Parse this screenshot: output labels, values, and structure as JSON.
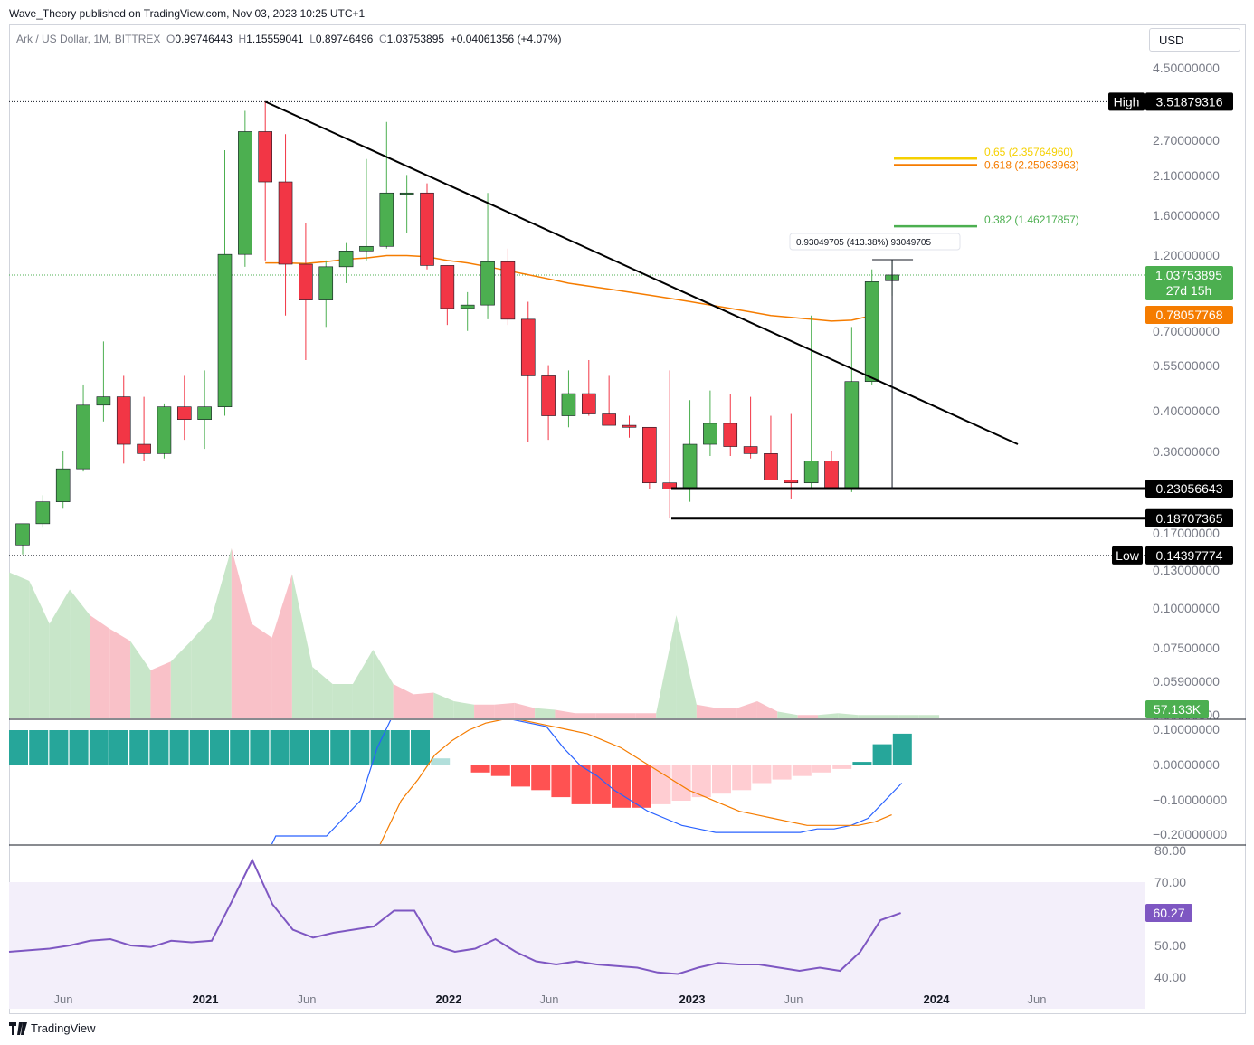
{
  "publisher_line": "Wave_Theory published on TradingView.com, Nov 03, 2023 10:25 UTC+1",
  "legend": {
    "symbol": "Ark / US Dollar, 1M, BITTREX",
    "o_label": "O",
    "o": "0.99746443",
    "h_label": "H",
    "h": "1.15559041",
    "l_label": "L",
    "l": "0.89746496",
    "c_label": "C",
    "c": "1.03753895",
    "change": "+0.04061356 (+4.07%)"
  },
  "currency_button": "USD",
  "footer_brand": "TradingView",
  "colors": {
    "up": "#4caf50",
    "down": "#f23645",
    "ema": "#f57c00",
    "trendline": "#000000",
    "fib_0382": "#4caf50",
    "fib_0618": "#f57c00",
    "fib_065": "#f5d000",
    "macd_line": "#2962ff",
    "signal_line": "#f57c00",
    "hist_up_strong": "#26a69a",
    "hist_up_weak": "#b2dfdb",
    "hist_down_strong": "#ff5252",
    "hist_down_weak": "#ffcdd2",
    "rsi_line": "#7e57c2",
    "rsi_band": "#f3effa"
  },
  "chart_data": {
    "type": "candlestick",
    "scale": "log",
    "price_axis_ticks": [
      "4.50000000",
      "2.70000000",
      "2.10000000",
      "1.60000000",
      "1.20000000",
      "0.70000000",
      "0.55000000",
      "0.40000000",
      "0.30000000",
      "0.17000000",
      "0.13000000",
      "0.10000000",
      "0.07500000",
      "0.05900000",
      "0.00000000"
    ],
    "x_axis_ticks": [
      "Jun",
      "2021",
      "Jun",
      "2022",
      "Jun",
      "2023",
      "Jun",
      "2024",
      "Jun"
    ],
    "price_labels": {
      "high_label": "High",
      "high_value": "3.51879316",
      "last_price": "1.03753895",
      "countdown": "27d 15h",
      "ema_value": "0.78057768",
      "support_1": "0.23056643",
      "support_2": "0.18707365",
      "low_label": "Low",
      "low_value": "0.14397774",
      "volume_value": "57.133K"
    },
    "fib_labels": {
      "f065": "0.65 (2.35764960)",
      "f0618": "0.618 (2.25063963)",
      "f0382": "0.382 (1.46217857)"
    },
    "measure_label": "0.93049705 (413.38%) 93049705",
    "candles": [
      {
        "o": 0.155,
        "h": 0.17,
        "l": 0.145,
        "c": 0.18
      },
      {
        "o": 0.18,
        "h": 0.22,
        "l": 0.175,
        "c": 0.21
      },
      {
        "o": 0.21,
        "h": 0.3,
        "l": 0.2,
        "c": 0.265
      },
      {
        "o": 0.265,
        "h": 0.48,
        "l": 0.26,
        "c": 0.415
      },
      {
        "o": 0.415,
        "h": 0.65,
        "l": 0.37,
        "c": 0.44
      },
      {
        "o": 0.44,
        "h": 0.51,
        "l": 0.275,
        "c": 0.315
      },
      {
        "o": 0.315,
        "h": 0.44,
        "l": 0.28,
        "c": 0.295
      },
      {
        "o": 0.295,
        "h": 0.42,
        "l": 0.285,
        "c": 0.41
      },
      {
        "o": 0.41,
        "h": 0.51,
        "l": 0.325,
        "c": 0.375
      },
      {
        "o": 0.375,
        "h": 0.53,
        "l": 0.305,
        "c": 0.41
      },
      {
        "o": 0.41,
        "h": 2.5,
        "l": 0.385,
        "c": 1.2
      },
      {
        "o": 1.2,
        "h": 3.3,
        "l": 1.1,
        "c": 2.85
      },
      {
        "o": 2.85,
        "h": 3.52,
        "l": 1.15,
        "c": 2.0
      },
      {
        "o": 2.0,
        "h": 2.8,
        "l": 0.78,
        "c": 1.12
      },
      {
        "o": 1.12,
        "h": 1.5,
        "l": 0.57,
        "c": 0.87
      },
      {
        "o": 0.87,
        "h": 1.15,
        "l": 0.72,
        "c": 1.1
      },
      {
        "o": 1.1,
        "h": 1.3,
        "l": 0.98,
        "c": 1.23
      },
      {
        "o": 1.23,
        "h": 2.35,
        "l": 1.15,
        "c": 1.27
      },
      {
        "o": 1.27,
        "h": 3.05,
        "l": 1.25,
        "c": 1.85
      },
      {
        "o": 1.85,
        "h": 2.1,
        "l": 1.4,
        "c": 1.85
      },
      {
        "o": 1.85,
        "h": 1.98,
        "l": 1.08,
        "c": 1.11
      },
      {
        "o": 1.11,
        "h": 1.11,
        "l": 0.73,
        "c": 0.82
      },
      {
        "o": 0.82,
        "h": 0.92,
        "l": 0.7,
        "c": 0.84
      },
      {
        "o": 0.84,
        "h": 1.85,
        "l": 0.76,
        "c": 1.14
      },
      {
        "o": 1.14,
        "h": 1.25,
        "l": 0.73,
        "c": 0.76
      },
      {
        "o": 0.76,
        "h": 0.86,
        "l": 0.32,
        "c": 0.51
      },
      {
        "o": 0.51,
        "h": 0.55,
        "l": 0.325,
        "c": 0.385
      },
      {
        "o": 0.385,
        "h": 0.53,
        "l": 0.355,
        "c": 0.45
      },
      {
        "o": 0.45,
        "h": 0.57,
        "l": 0.385,
        "c": 0.39
      },
      {
        "o": 0.39,
        "h": 0.51,
        "l": 0.37,
        "c": 0.36
      },
      {
        "o": 0.36,
        "h": 0.385,
        "l": 0.33,
        "c": 0.355
      },
      {
        "o": 0.355,
        "h": 0.355,
        "l": 0.23,
        "c": 0.24
      },
      {
        "o": 0.24,
        "h": 0.53,
        "l": 0.187,
        "c": 0.23
      },
      {
        "o": 0.23,
        "h": 0.43,
        "l": 0.21,
        "c": 0.315
      },
      {
        "o": 0.315,
        "h": 0.46,
        "l": 0.29,
        "c": 0.365
      },
      {
        "o": 0.365,
        "h": 0.45,
        "l": 0.29,
        "c": 0.31
      },
      {
        "o": 0.31,
        "h": 0.44,
        "l": 0.285,
        "c": 0.295
      },
      {
        "o": 0.295,
        "h": 0.385,
        "l": 0.245,
        "c": 0.245
      },
      {
        "o": 0.245,
        "h": 0.39,
        "l": 0.215,
        "c": 0.24
      },
      {
        "o": 0.24,
        "h": 0.78,
        "l": 0.23,
        "c": 0.28
      },
      {
        "o": 0.28,
        "h": 0.3,
        "l": 0.23,
        "c": 0.23
      },
      {
        "o": 0.23,
        "h": 0.72,
        "l": 0.225,
        "c": 0.49
      },
      {
        "o": 0.49,
        "h": 1.08,
        "l": 0.48,
        "c": 0.99
      },
      {
        "o": 0.997,
        "h": 1.156,
        "l": 0.897,
        "c": 1.038
      }
    ],
    "ema": [
      1.13,
      1.13,
      1.125,
      1.14,
      1.16,
      1.17,
      1.19,
      1.19,
      1.18,
      1.15,
      1.13,
      1.1,
      1.07,
      1.04,
      1.01,
      0.98,
      0.96,
      0.94,
      0.92,
      0.9,
      0.88,
      0.86,
      0.84,
      0.82,
      0.8,
      0.78,
      0.77,
      0.76,
      0.75,
      0.755,
      0.78
    ],
    "volume": [
      0.85,
      0.8,
      0.55,
      0.75,
      0.6,
      0.52,
      0.45,
      0.28,
      0.33,
      0.45,
      0.58,
      0.99,
      0.55,
      0.47,
      0.84,
      0.3,
      0.2,
      0.2,
      0.4,
      0.2,
      0.14,
      0.15,
      0.1,
      0.08,
      0.08,
      0.09,
      0.06,
      0.05,
      0.03,
      0.03,
      0.03,
      0.03,
      0.03,
      0.6,
      0.08,
      0.06,
      0.06,
      0.1,
      0.04,
      0.02,
      0.02,
      0.03,
      0.02,
      0.02,
      0.02,
      0.02,
      0.02
    ],
    "macd_hist": [
      0.1,
      0.1,
      0.1,
      0.1,
      0.1,
      0.1,
      0.1,
      0.1,
      0.1,
      0.1,
      0.1,
      0.1,
      0.1,
      0.1,
      0.1,
      0.1,
      0.1,
      0.1,
      0.1,
      0.1,
      0.1,
      0.02,
      0.0,
      -0.02,
      -0.03,
      -0.06,
      -0.07,
      -0.09,
      -0.11,
      -0.11,
      -0.12,
      -0.12,
      -0.11,
      -0.1,
      -0.09,
      -0.08,
      -0.07,
      -0.05,
      -0.04,
      -0.03,
      -0.02,
      -0.01,
      0.01,
      0.06,
      0.09
    ],
    "macd_line": [
      -0.6,
      -0.5,
      -0.4,
      -0.3,
      -0.2,
      -0.2,
      -0.2,
      -0.2,
      -0.15,
      -0.1,
      0.05,
      0.15,
      0.2,
      0.19,
      0.18,
      0.16,
      0.15,
      0.14,
      0.13,
      0.12,
      0.11,
      0.05,
      0.0,
      -0.03,
      -0.07,
      -0.1,
      -0.13,
      -0.15,
      -0.17,
      -0.18,
      -0.19,
      -0.19,
      -0.19,
      -0.19,
      -0.19,
      -0.19,
      -0.18,
      -0.18,
      -0.17,
      -0.15,
      -0.1,
      -0.05
    ],
    "signal_line": [
      -0.8,
      -0.7,
      -0.6,
      -0.55,
      -0.5,
      -0.45,
      -0.4,
      -0.3,
      -0.2,
      -0.1,
      -0.04,
      0.03,
      0.07,
      0.1,
      0.12,
      0.13,
      0.13,
      0.12,
      0.11,
      0.1,
      0.09,
      0.07,
      0.05,
      0.02,
      -0.01,
      -0.04,
      -0.07,
      -0.09,
      -0.11,
      -0.13,
      -0.14,
      -0.15,
      -0.16,
      -0.17,
      -0.17,
      -0.17,
      -0.17,
      -0.16,
      -0.14
    ],
    "rsi": [
      48,
      48.5,
      49,
      50,
      51.5,
      52,
      50,
      49.5,
      51.5,
      51,
      51.5,
      64,
      77,
      63,
      55,
      52.5,
      54,
      55,
      56,
      61,
      61,
      50,
      48,
      49,
      52,
      48,
      45,
      44,
      45,
      44,
      43.5,
      43,
      41.5,
      41,
      43,
      44.5,
      44,
      44,
      43,
      42,
      43,
      42,
      48,
      58,
      60.27
    ],
    "rsi_ticks": [
      "80.00",
      "70.00",
      "60.27",
      "50.00",
      "40.00"
    ],
    "macd_ticks": [
      "0.10000000",
      "0.00000000",
      "−0.10000000",
      "−0.20000000"
    ]
  }
}
